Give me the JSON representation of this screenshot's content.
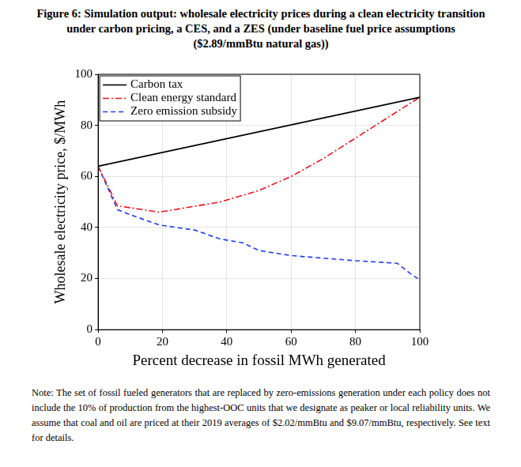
{
  "chart_data": {
    "type": "line",
    "title": "Figure 6: Simulation output: wholesale electricity prices during a clean electricity transition under carbon pricing, a CES, and a ZES (under baseline fuel price assumptions ($2.89/mmBtu natural gas))",
    "note": "Note: The set of fossil fueled generators that are replaced by zero-emissions generation under each policy does not include the 10% of production from the highest-OOC units that we designate as peaker or local reliability units. We assume that coal and oil are priced at their 2019 averages of $2.02/mmBtu and $9.07/mmBtu, respectively. See text for details.",
    "x_label": "Percent decrease in fossil MWh generated",
    "y_label": "Wholesale electricity price, $/MWh",
    "xlim": [
      0,
      100
    ],
    "xticks": [
      0,
      20,
      40,
      60,
      80,
      100
    ],
    "ylim": [
      0,
      100
    ],
    "yticks": [
      0,
      20,
      40,
      60,
      80,
      100
    ],
    "grid": true,
    "legend": "upper left",
    "series": [
      {
        "name": "Carbon tax",
        "color": "#000000",
        "line_style": "solid",
        "x": [
          0,
          100
        ],
        "values": [
          64,
          91
        ]
      },
      {
        "name": "Clean energy standard",
        "color": "#e8141c",
        "line_style": "dashdot",
        "x": [
          0,
          6,
          19,
          38,
          50,
          60,
          70,
          80,
          90,
          100
        ],
        "values": [
          64,
          48.5,
          46,
          50,
          54.5,
          60,
          67,
          75,
          83,
          91
        ]
      },
      {
        "name": "Zero emission subsidy",
        "color": "#1f3ff0",
        "line_style": "dashed",
        "x": [
          0,
          6,
          10,
          19,
          30,
          38,
          45,
          50,
          60,
          70,
          80,
          93,
          97,
          100
        ],
        "values": [
          64,
          47,
          45,
          41,
          39,
          35.5,
          34,
          31,
          29,
          28,
          27,
          26,
          22,
          19.5
        ]
      }
    ]
  }
}
